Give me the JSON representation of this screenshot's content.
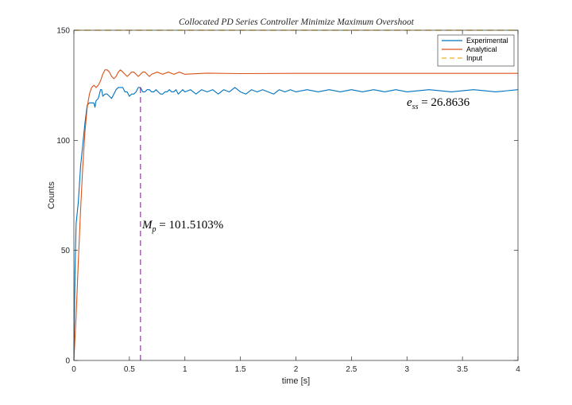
{
  "chart_data": {
    "type": "line",
    "title": "Collocated PD Series Controller Minimize Maximum Overshoot",
    "xlabel": "time [s]",
    "ylabel": "Counts",
    "xlim": [
      0,
      4
    ],
    "ylim": [
      0,
      150
    ],
    "xticks": [
      0,
      0.5,
      1,
      1.5,
      2,
      2.5,
      3,
      3.5,
      4
    ],
    "xtick_labels": [
      "0",
      "0.5",
      "1",
      "1.5",
      "2",
      "2.5",
      "3",
      "3.5",
      "4"
    ],
    "yticks": [
      0,
      50,
      100,
      150
    ],
    "ytick_labels": [
      "0",
      "50",
      "100",
      "150"
    ],
    "grid": false,
    "legend_position": "top-right",
    "series": [
      {
        "name": "Experimental",
        "color": "#0072BD",
        "style": "solid",
        "points": [
          [
            0,
            0
          ],
          [
            0.01,
            40
          ],
          [
            0.02,
            62
          ],
          [
            0.04,
            72
          ],
          [
            0.06,
            88
          ],
          [
            0.08,
            98
          ],
          [
            0.1,
            108
          ],
          [
            0.12,
            116
          ],
          [
            0.14,
            117
          ],
          [
            0.16,
            117
          ],
          [
            0.18,
            117
          ],
          [
            0.19,
            115
          ],
          [
            0.2,
            118
          ],
          [
            0.22,
            119
          ],
          [
            0.24,
            123
          ],
          [
            0.25,
            123
          ],
          [
            0.26,
            120
          ],
          [
            0.28,
            121
          ],
          [
            0.3,
            121
          ],
          [
            0.32,
            120
          ],
          [
            0.34,
            119
          ],
          [
            0.36,
            121
          ],
          [
            0.38,
            123
          ],
          [
            0.4,
            124
          ],
          [
            0.42,
            124
          ],
          [
            0.44,
            124
          ],
          [
            0.46,
            122
          ],
          [
            0.48,
            122
          ],
          [
            0.5,
            120
          ],
          [
            0.52,
            121
          ],
          [
            0.54,
            121
          ],
          [
            0.56,
            122
          ],
          [
            0.58,
            124
          ],
          [
            0.6,
            124
          ],
          [
            0.62,
            122
          ],
          [
            0.64,
            122
          ],
          [
            0.66,
            123
          ],
          [
            0.68,
            123
          ],
          [
            0.7,
            122
          ],
          [
            0.72,
            122
          ],
          [
            0.74,
            123
          ],
          [
            0.76,
            122
          ],
          [
            0.78,
            121
          ],
          [
            0.8,
            121
          ],
          [
            0.82,
            122
          ],
          [
            0.84,
            122
          ],
          [
            0.86,
            123
          ],
          [
            0.88,
            122
          ],
          [
            0.9,
            122
          ],
          [
            0.92,
            123
          ],
          [
            0.94,
            121
          ],
          [
            0.96,
            122
          ],
          [
            0.98,
            123
          ],
          [
            1.0,
            122
          ],
          [
            1.05,
            123
          ],
          [
            1.1,
            121
          ],
          [
            1.15,
            123
          ],
          [
            1.2,
            122
          ],
          [
            1.25,
            123
          ],
          [
            1.3,
            121
          ],
          [
            1.35,
            123
          ],
          [
            1.4,
            122
          ],
          [
            1.45,
            124
          ],
          [
            1.5,
            122
          ],
          [
            1.55,
            121
          ],
          [
            1.6,
            123
          ],
          [
            1.65,
            122
          ],
          [
            1.7,
            123
          ],
          [
            1.75,
            122
          ],
          [
            1.8,
            121
          ],
          [
            1.85,
            123
          ],
          [
            1.9,
            122
          ],
          [
            1.95,
            123
          ],
          [
            2.0,
            122
          ],
          [
            2.1,
            123
          ],
          [
            2.2,
            122
          ],
          [
            2.3,
            123
          ],
          [
            2.4,
            122
          ],
          [
            2.5,
            123
          ],
          [
            2.6,
            122
          ],
          [
            2.7,
            123
          ],
          [
            2.8,
            122
          ],
          [
            2.9,
            123
          ],
          [
            3.0,
            122
          ],
          [
            3.2,
            123
          ],
          [
            3.4,
            122
          ],
          [
            3.6,
            123
          ],
          [
            3.8,
            122
          ],
          [
            4.0,
            123
          ]
        ]
      },
      {
        "name": "Analytical",
        "color": "#D95319",
        "style": "solid",
        "points": [
          [
            0,
            0
          ],
          [
            0.02,
            20
          ],
          [
            0.04,
            45
          ],
          [
            0.06,
            68
          ],
          [
            0.08,
            88
          ],
          [
            0.1,
            104
          ],
          [
            0.12,
            115
          ],
          [
            0.14,
            121
          ],
          [
            0.16,
            124
          ],
          [
            0.18,
            125
          ],
          [
            0.2,
            124
          ],
          [
            0.22,
            125
          ],
          [
            0.24,
            127
          ],
          [
            0.26,
            130
          ],
          [
            0.28,
            132
          ],
          [
            0.3,
            132
          ],
          [
            0.32,
            131
          ],
          [
            0.34,
            129
          ],
          [
            0.36,
            128
          ],
          [
            0.38,
            129
          ],
          [
            0.4,
            131
          ],
          [
            0.42,
            132
          ],
          [
            0.44,
            131
          ],
          [
            0.46,
            130
          ],
          [
            0.48,
            129
          ],
          [
            0.5,
            130
          ],
          [
            0.52,
            131
          ],
          [
            0.54,
            131
          ],
          [
            0.56,
            130
          ],
          [
            0.58,
            129
          ],
          [
            0.6,
            130
          ],
          [
            0.62,
            131
          ],
          [
            0.64,
            131
          ],
          [
            0.66,
            130
          ],
          [
            0.68,
            129
          ],
          [
            0.7,
            130
          ],
          [
            0.75,
            131
          ],
          [
            0.8,
            130
          ],
          [
            0.85,
            131
          ],
          [
            0.9,
            130
          ],
          [
            0.95,
            131
          ],
          [
            1.0,
            130
          ],
          [
            1.2,
            130.5
          ],
          [
            1.5,
            130.3
          ],
          [
            2.0,
            130.4
          ],
          [
            3.0,
            130.4
          ],
          [
            4.0,
            130.4
          ]
        ]
      },
      {
        "name": "Input",
        "color": "#EDB120",
        "style": "dashed",
        "points": [
          [
            0,
            150
          ],
          [
            4,
            150
          ]
        ]
      }
    ],
    "annotations": [
      {
        "id": "mp",
        "text": "M_p = 101.5103%",
        "x": 0.6,
        "y": 62
      },
      {
        "id": "ess",
        "text": "e_ss = 26.8636",
        "x": 3.0,
        "y": 117
      }
    ],
    "vline": {
      "x": 0.6,
      "y_from": 0,
      "y_to": 125,
      "color": "#7E2F8E",
      "style": "dashed"
    }
  },
  "annotation_text": {
    "mp_symbol": "M",
    "mp_sub": "p",
    "mp_value": " = 101.5103%",
    "ess_symbol": "e",
    "ess_sub": "ss",
    "ess_value": " = 26.8636"
  }
}
